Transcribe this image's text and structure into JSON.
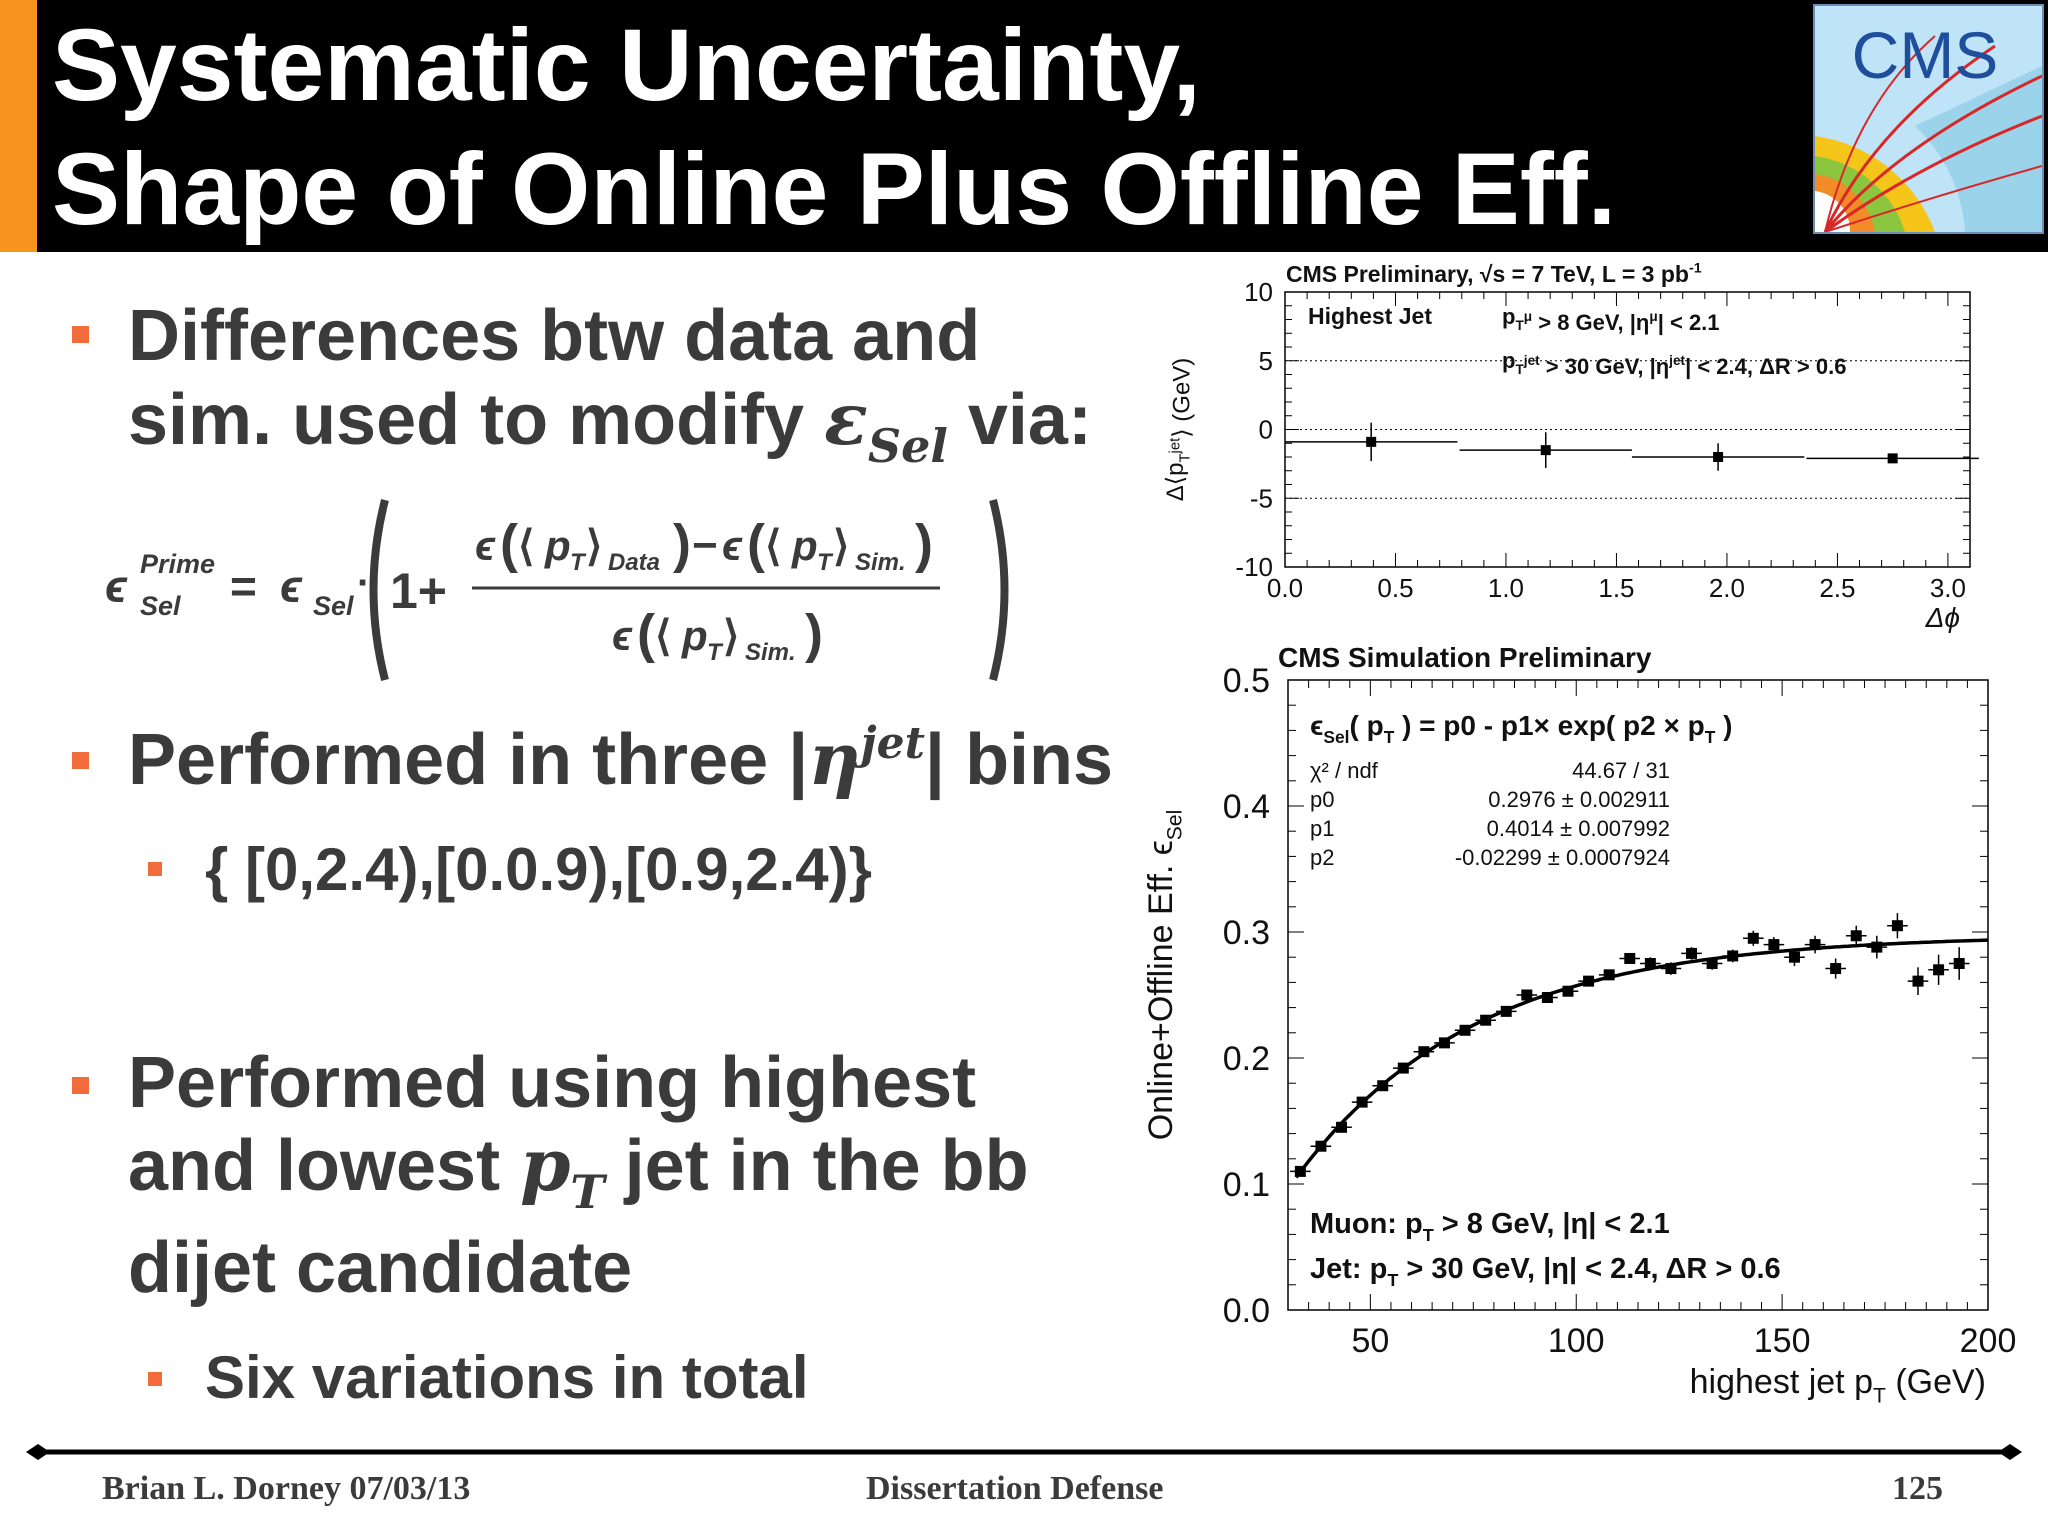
{
  "title": {
    "line1": "Systematic Uncertainty,",
    "line2": "Shape of Online Plus Offline Eff."
  },
  "logo": {
    "text": "CMS"
  },
  "bullets": [
    {
      "line1": "Differences btw data and",
      "line2_prefix": "sim. used to modify ",
      "line2_symbol": "ε",
      "line2_sub": "Sel",
      "line2_suffix": " via:"
    },
    {
      "prefix": "Performed in three |",
      "symbol": "η",
      "sup": "jet",
      "suffix": "| bins"
    },
    {
      "line1": "Performed using highest",
      "line2_prefix": "and lowest ",
      "line2_symbol": "p",
      "line2_sub": "T",
      "line2_suffix": " jet in the bb",
      "line3": "dijet candidate"
    }
  ],
  "sub_bullets": [
    {
      "text": "{ [0,2.4),[0.0.9),[0.9,2.4)}"
    },
    {
      "text": "Six variations in total"
    }
  ],
  "formula": {
    "eps": "ϵ",
    "prime": "Prime",
    "sel": "Sel",
    "equals": "=",
    "dot": "·",
    "one_plus": "1+",
    "p": "p",
    "t": "T",
    "data": "Data",
    "sim": "Sim.",
    "minus": "−",
    "langle": "⟨",
    "rangle": "⟩",
    "lparen": "(",
    "rparen": ")"
  },
  "footer": {
    "author": "Brian L. Dorney 07/03/13",
    "event": "Dissertation Defense",
    "page": "125"
  },
  "chart_data": [
    {
      "type": "scatter",
      "title": "CMS Preliminary, √s = 7 TeV, L = 3 pb⁻¹",
      "title_parts": {
        "prefix": "CMS Preliminary, ",
        "sqrt": "√s",
        "mid": " = 7 TeV, L = 3 pb",
        "sup": "-1"
      },
      "xlabel": "Δϕ",
      "ylabel": "Δ⟨p",
      "ylabel_sub": "T",
      "ylabel_sup": "jet",
      "ylabel_suffix": "⟩ (GeV)",
      "xlim": [
        0.0,
        3.1
      ],
      "ylim": [
        -10,
        10
      ],
      "xticks": [
        "0.0",
        "0.5",
        "1.0",
        "1.5",
        "2.0",
        "2.5",
        "3.0"
      ],
      "yticks": [
        "10",
        "5",
        "0",
        "-5",
        "-10"
      ],
      "grid_y": [
        5,
        0,
        -5
      ],
      "legend_label": "Highest Jet",
      "cut_muon": {
        "p": "p",
        "sub": "T",
        "sup": "μ",
        "text": " > 8 GeV, |η",
        "sup2": "μ",
        "text2": "| < 2.1"
      },
      "cut_jet": {
        "p": "p",
        "sub": "T",
        "sup": "jet",
        "text": " > 30 GeV, |η",
        "sup2": "jet",
        "text2": "| < 2.4, ΔR > 0.6"
      },
      "points": [
        {
          "x": 0.39,
          "xerr": 0.39,
          "y": -0.9,
          "yerr": 1.4
        },
        {
          "x": 1.18,
          "xerr": 0.39,
          "y": -1.5,
          "yerr": 1.3
        },
        {
          "x": 1.96,
          "xerr": 0.39,
          "y": -2.0,
          "yerr": 1.0
        },
        {
          "x": 2.75,
          "xerr": 0.39,
          "y": -2.1,
          "yerr": 0.3
        }
      ]
    },
    {
      "type": "scatter",
      "title": "CMS Simulation Preliminary",
      "xlabel": "highest jet p",
      "xlabel_sub": "T",
      "xlabel_suffix": " (GeV)",
      "ylabel": "Online+Offline Eff. ϵ",
      "ylabel_sub": "Sel",
      "xlim": [
        30,
        200
      ],
      "ylim": [
        0.0,
        0.5
      ],
      "xticks": [
        "50",
        "100",
        "150",
        "200"
      ],
      "yticks": [
        "0.5",
        "0.4",
        "0.3",
        "0.2",
        "0.1",
        "0.0"
      ],
      "fit_formula": "ϵ",
      "fit_formula_sub": "Sel",
      "fit_formula_mid": "( p",
      "fit_formula_mid_sub": "T",
      "fit_formula_rest": " ) = p0 - p1× exp( p2 × p",
      "fit_formula_rest_sub": "T",
      "fit_formula_end": " )",
      "fit_stats": [
        {
          "label": "χ² / ndf",
          "value": "44.67 / 31"
        },
        {
          "label": "p0",
          "value": "0.2976 ± 0.002911"
        },
        {
          "label": "p1",
          "value": "0.4014 ± 0.007992"
        },
        {
          "label": "p2",
          "value": "-0.02299 ± 0.0007924"
        }
      ],
      "fit": {
        "p0": 0.2976,
        "p1": 0.4014,
        "p2": -0.02299,
        "xmin": 32,
        "xmax": 200
      },
      "cut_muon": {
        "prefix": "Muon: p",
        "sub": "T",
        "text": " > 8 GeV, |η| < 2.1"
      },
      "cut_jet": {
        "prefix": "Jet: p",
        "sub": "T",
        "text": " > 30 GeV, |η| < 2.4, ΔR > 0.6"
      },
      "points": [
        {
          "x": 33,
          "y": 0.11,
          "yerr": 0.004
        },
        {
          "x": 38,
          "y": 0.13,
          "yerr": 0.004
        },
        {
          "x": 43,
          "y": 0.145,
          "yerr": 0.004
        },
        {
          "x": 48,
          "y": 0.165,
          "yerr": 0.004
        },
        {
          "x": 53,
          "y": 0.178,
          "yerr": 0.004
        },
        {
          "x": 58,
          "y": 0.192,
          "yerr": 0.004
        },
        {
          "x": 63,
          "y": 0.205,
          "yerr": 0.004
        },
        {
          "x": 68,
          "y": 0.212,
          "yerr": 0.004
        },
        {
          "x": 73,
          "y": 0.222,
          "yerr": 0.004
        },
        {
          "x": 78,
          "y": 0.23,
          "yerr": 0.004
        },
        {
          "x": 83,
          "y": 0.237,
          "yerr": 0.004
        },
        {
          "x": 88,
          "y": 0.25,
          "yerr": 0.004
        },
        {
          "x": 93,
          "y": 0.248,
          "yerr": 0.004
        },
        {
          "x": 98,
          "y": 0.253,
          "yerr": 0.004
        },
        {
          "x": 103,
          "y": 0.261,
          "yerr": 0.004
        },
        {
          "x": 108,
          "y": 0.266,
          "yerr": 0.004
        },
        {
          "x": 113,
          "y": 0.279,
          "yerr": 0.004
        },
        {
          "x": 118,
          "y": 0.275,
          "yerr": 0.005
        },
        {
          "x": 123,
          "y": 0.271,
          "yerr": 0.005
        },
        {
          "x": 128,
          "y": 0.283,
          "yerr": 0.005
        },
        {
          "x": 133,
          "y": 0.275,
          "yerr": 0.005
        },
        {
          "x": 138,
          "y": 0.281,
          "yerr": 0.005
        },
        {
          "x": 143,
          "y": 0.295,
          "yerr": 0.006
        },
        {
          "x": 148,
          "y": 0.29,
          "yerr": 0.006
        },
        {
          "x": 153,
          "y": 0.28,
          "yerr": 0.007
        },
        {
          "x": 158,
          "y": 0.29,
          "yerr": 0.007
        },
        {
          "x": 163,
          "y": 0.271,
          "yerr": 0.008
        },
        {
          "x": 168,
          "y": 0.297,
          "yerr": 0.008
        },
        {
          "x": 173,
          "y": 0.288,
          "yerr": 0.009
        },
        {
          "x": 178,
          "y": 0.305,
          "yerr": 0.01
        },
        {
          "x": 183,
          "y": 0.261,
          "yerr": 0.011
        },
        {
          "x": 188,
          "y": 0.27,
          "yerr": 0.012
        },
        {
          "x": 193,
          "y": 0.275,
          "yerr": 0.013
        }
      ]
    }
  ]
}
